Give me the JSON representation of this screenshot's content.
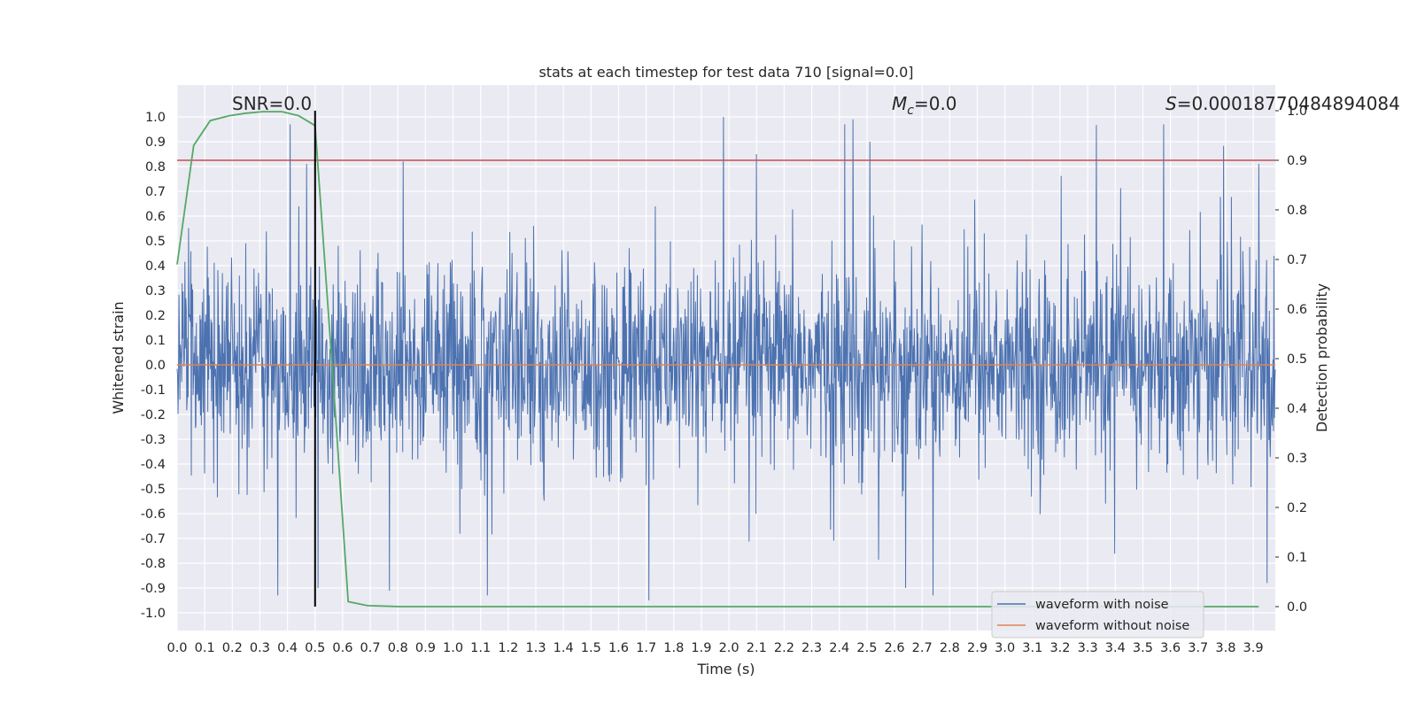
{
  "chart_data": {
    "type": "line",
    "title": "stats at each timestep for test data 710 [signal=0.0]",
    "xlabel": "Time (s)",
    "ylabel": "Whitened strain",
    "y2label": "Detection probability",
    "xlim": [
      0.0,
      3.98
    ],
    "ylim": [
      -1.1,
      1.1
    ],
    "y2lim": [
      -0.05,
      1.0
    ],
    "grid": true,
    "x_ticks": [
      "0.0",
      "0.1",
      "0.2",
      "0.3",
      "0.4",
      "0.5",
      "0.6",
      "0.7",
      "0.8",
      "0.9",
      "1.0",
      "1.1",
      "1.2",
      "1.3",
      "1.4",
      "1.5",
      "1.6",
      "1.7",
      "1.8",
      "1.9",
      "2.0",
      "2.1",
      "2.2",
      "2.3",
      "2.4",
      "2.5",
      "2.6",
      "2.7",
      "2.8",
      "2.9",
      "3.0",
      "3.1",
      "3.2",
      "3.3",
      "3.4",
      "3.5",
      "3.6",
      "3.7",
      "3.8",
      "3.9"
    ],
    "y_ticks": [
      "1.0",
      "0.9",
      "0.8",
      "0.7",
      "0.6",
      "0.5",
      "0.4",
      "0.3",
      "0.2",
      "0.1",
      "0.0",
      "-0.1",
      "-0.2",
      "-0.3",
      "-0.4",
      "-0.5",
      "-0.6",
      "-0.7",
      "-0.8",
      "-0.9",
      "-1.0"
    ],
    "y2_ticks": [
      "1.0",
      "0.9",
      "0.8",
      "0.7",
      "0.6",
      "0.5",
      "0.4",
      "0.3",
      "0.2",
      "0.1",
      "0.0"
    ],
    "annotations": {
      "snr": "SNR=0.0",
      "mc_symbol": "M",
      "mc_sub": "c",
      "mc_value": "=0.0",
      "s_symbol": "S",
      "s_value": "=0.00018770484894084"
    },
    "legend": {
      "placement": "lower-right",
      "entries": [
        "waveform with noise",
        "waveform without noise"
      ]
    },
    "threshold": {
      "axis": "y2",
      "value": 0.9,
      "color": "#c44e52"
    },
    "marker_line": {
      "x": 0.5,
      "color": "#000000"
    },
    "colors": {
      "noise": "#4c72b0",
      "clean": "#dd8452",
      "probability": "#55a868",
      "background": "#eaeaf2",
      "grid": "#ffffff"
    },
    "series": [
      {
        "name": "waveform with noise",
        "axis": "y",
        "x_start": 0.0,
        "x_end": 3.98,
        "amplitude": "approx -0.95 to 1.0",
        "spikes": [
          {
            "x": 0.5,
            "y": 0.95
          },
          {
            "x": 0.51,
            "y": -0.9
          },
          {
            "x": 0.82,
            "y": 0.82
          },
          {
            "x": 1.71,
            "y": -0.95
          },
          {
            "x": 1.98,
            "y": 1.0
          },
          {
            "x": 2.1,
            "y": 0.85
          },
          {
            "x": 2.42,
            "y": 0.97
          },
          {
            "x": 2.45,
            "y": 0.99
          },
          {
            "x": 2.51,
            "y": 0.9
          },
          {
            "x": 2.64,
            "y": -0.9
          },
          {
            "x": 3.92,
            "y": 0.81
          },
          {
            "x": 3.95,
            "y": -0.88
          }
        ]
      },
      {
        "name": "waveform without noise",
        "axis": "y",
        "x": [
          0.0,
          3.98
        ],
        "y": [
          0.0,
          0.0
        ]
      },
      {
        "axis": "y2",
        "x": [
          0.0,
          0.06,
          0.12,
          0.19,
          0.25,
          0.31,
          0.38,
          0.44,
          0.5,
          0.56,
          0.62,
          0.69,
          0.75,
          0.81,
          0.88,
          1.0,
          1.5,
          2.0,
          2.5,
          3.0,
          3.5,
          3.92
        ],
        "y": [
          0.69,
          0.93,
          0.98,
          0.99,
          0.995,
          0.998,
          0.998,
          0.99,
          0.97,
          0.5,
          0.01,
          0.002,
          0.001,
          0.0,
          0.0,
          0.0,
          0.0,
          0.0,
          0.0,
          0.0,
          0.0,
          0.0
        ]
      }
    ]
  }
}
